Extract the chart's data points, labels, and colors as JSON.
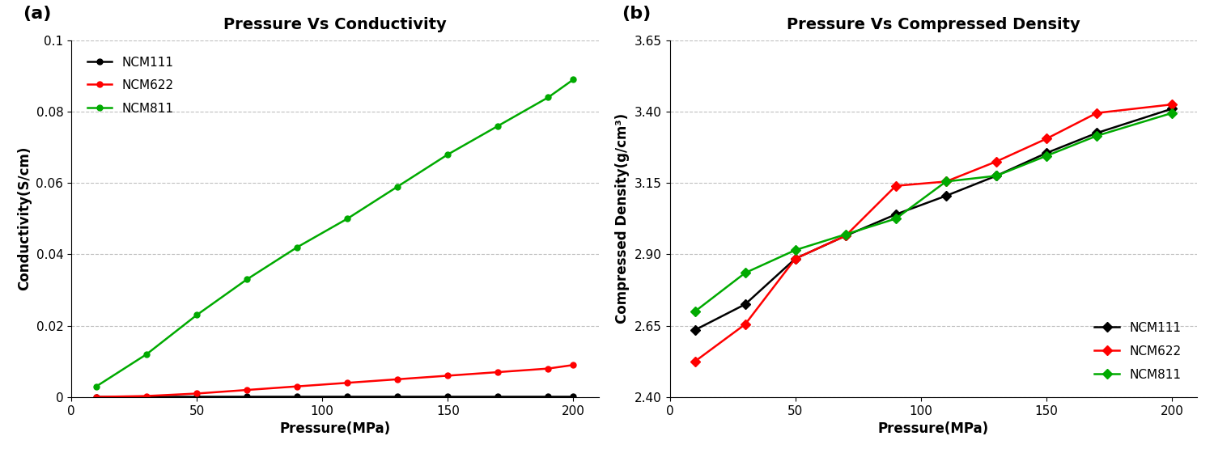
{
  "pressure_conductivity": [
    10,
    30,
    50,
    70,
    90,
    110,
    130,
    150,
    170,
    190,
    200
  ],
  "ncm111_conductivity": [
    5e-05,
    5e-05,
    0.0001,
    0.0001,
    0.0001,
    0.0001,
    0.0001,
    0.0001,
    0.0001,
    0.0001,
    0.0001
  ],
  "ncm622_conductivity": [
    5e-05,
    0.0003,
    0.001,
    0.002,
    0.003,
    0.004,
    0.005,
    0.006,
    0.007,
    0.008,
    0.009
  ],
  "ncm811_conductivity": [
    0.003,
    0.012,
    0.023,
    0.033,
    0.042,
    0.05,
    0.059,
    0.068,
    0.076,
    0.084,
    0.089
  ],
  "pressure_density": [
    10,
    30,
    50,
    70,
    90,
    110,
    130,
    150,
    170,
    200
  ],
  "ncm111_density": [
    2.635,
    2.725,
    2.885,
    2.965,
    3.04,
    3.105,
    3.175,
    3.255,
    3.325,
    3.41
  ],
  "ncm622_density": [
    2.525,
    2.655,
    2.885,
    2.965,
    3.14,
    3.155,
    3.225,
    3.305,
    3.395,
    3.425
  ],
  "ncm811_density": [
    2.7,
    2.835,
    2.915,
    2.97,
    3.025,
    3.155,
    3.175,
    3.245,
    3.315,
    3.395
  ],
  "title_a": "Pressure Vs Conductivity",
  "title_b": "Pressure Vs Compressed Density",
  "xlabel": "Pressure(MPa)",
  "ylabel_a": "Conductivity(S/cm)",
  "ylabel_b": "Compressed Density(g/cm³)",
  "label_a": "(a)",
  "label_b": "(b)",
  "color_111": "#000000",
  "color_622": "#ff0000",
  "color_811": "#00aa00",
  "xlim_a": [
    0,
    210
  ],
  "ylim_a": [
    0,
    0.1
  ],
  "xlim_b": [
    0,
    210
  ],
  "ylim_b": [
    2.4,
    3.65
  ],
  "xticks": [
    0,
    50,
    100,
    150,
    200
  ],
  "yticks_a": [
    0,
    0.02,
    0.04,
    0.06,
    0.08,
    0.1
  ],
  "yticks_b": [
    2.4,
    2.65,
    2.9,
    3.15,
    3.4,
    3.65
  ]
}
